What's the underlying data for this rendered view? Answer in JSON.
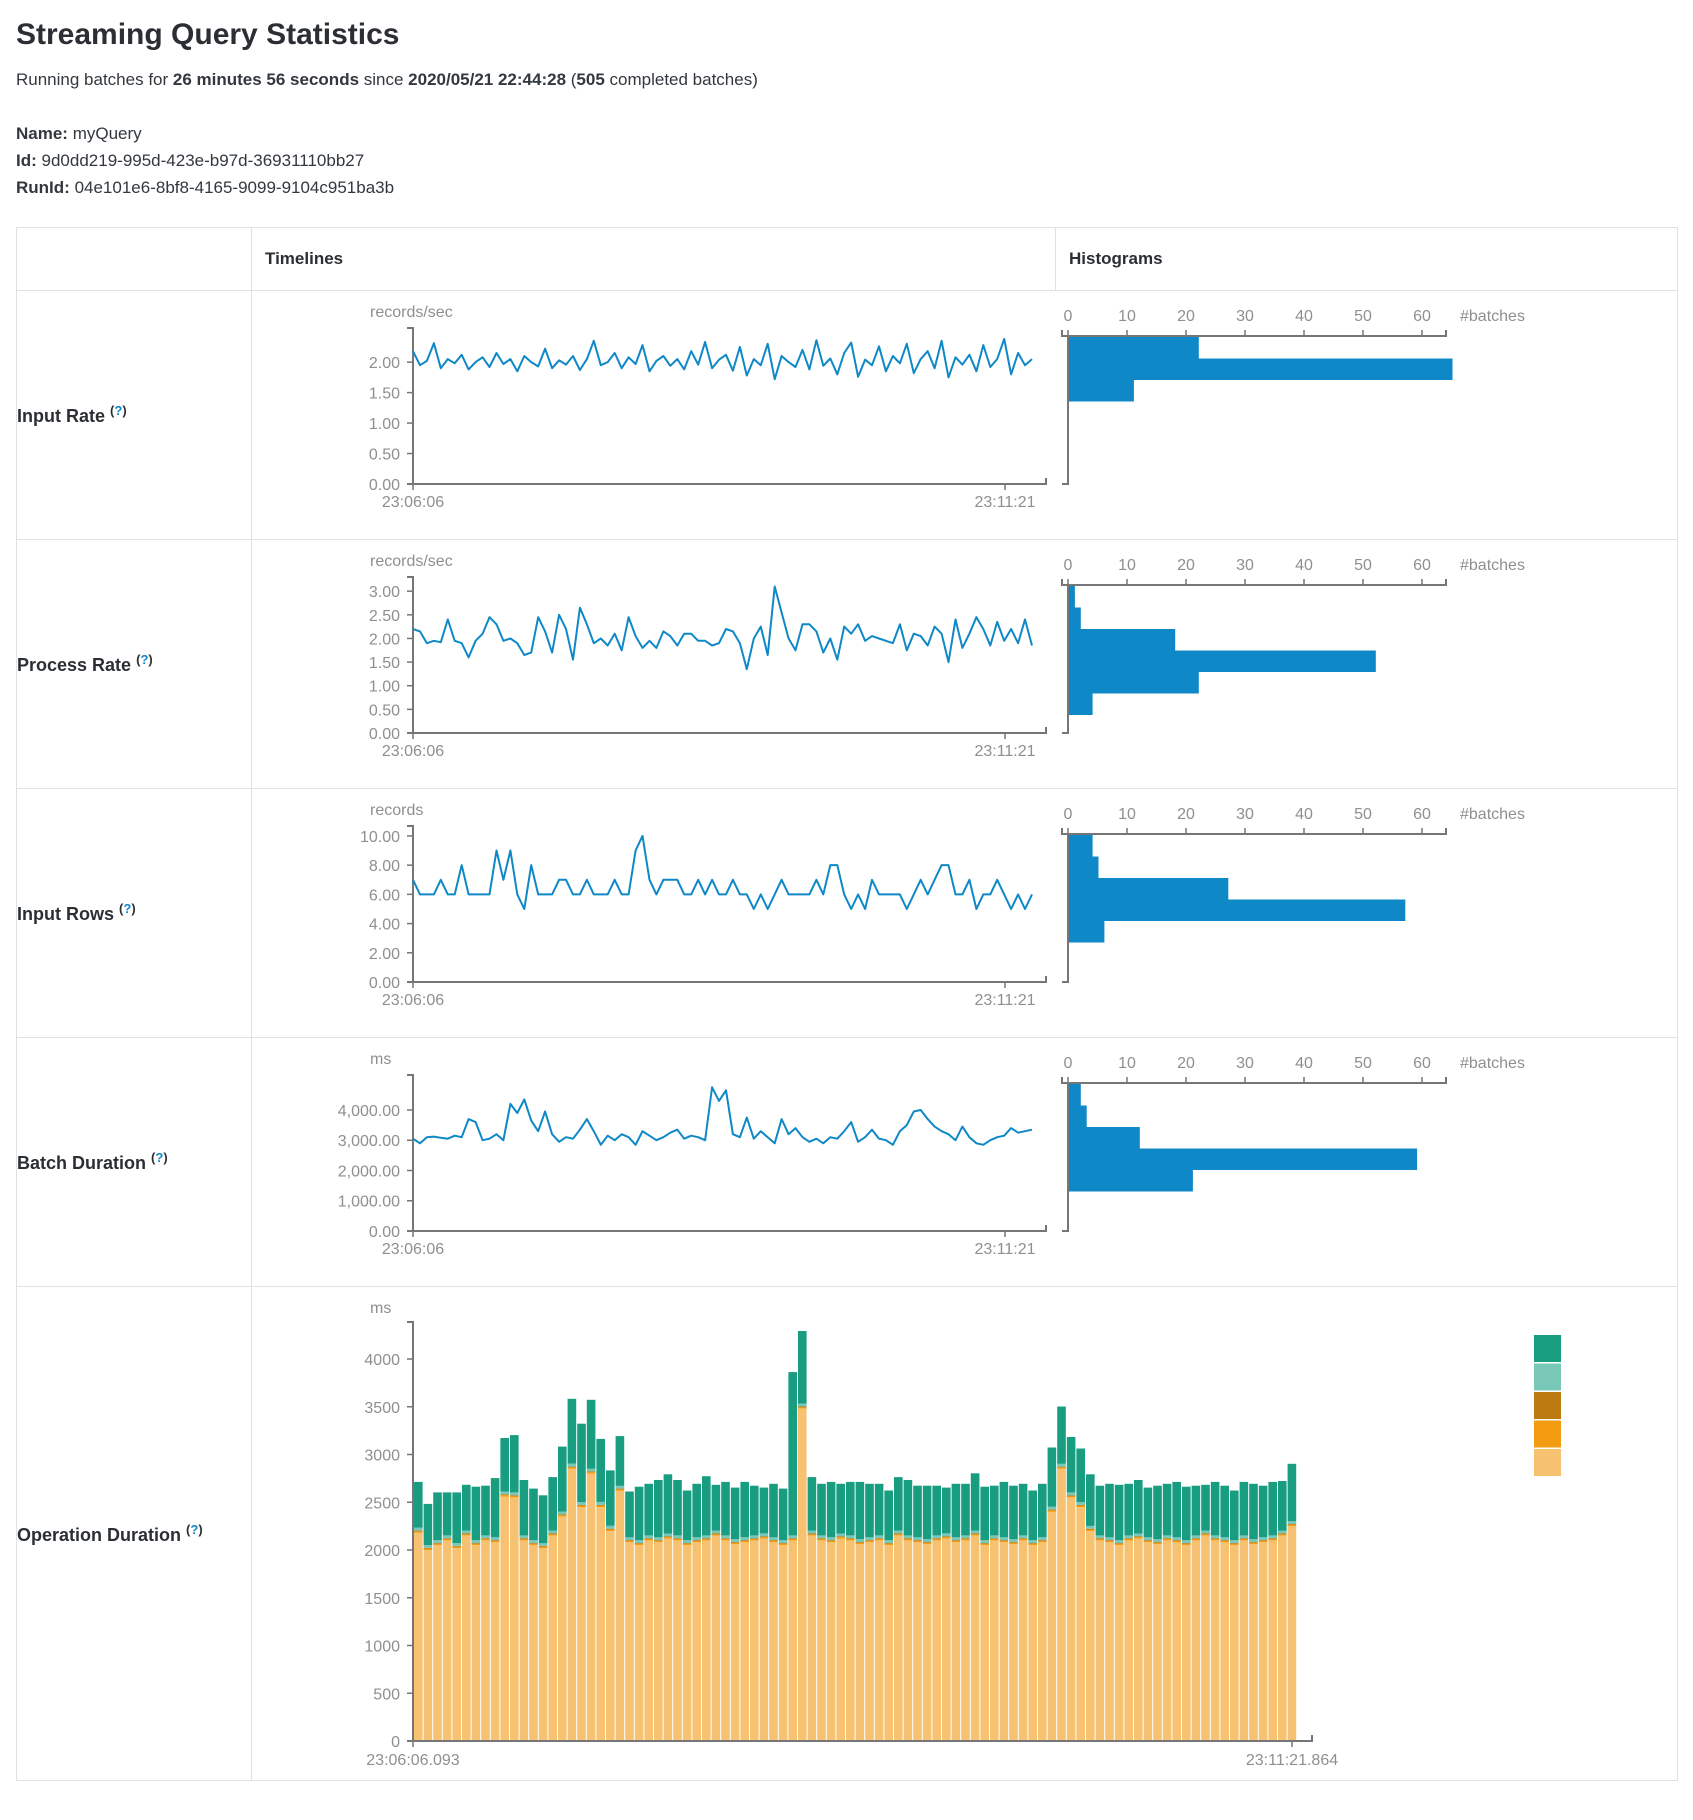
{
  "page": {
    "title": "Streaming Query Statistics"
  },
  "subtitle": {
    "prefix": "Running batches for ",
    "duration": "26 minutes 56 seconds",
    "mid": " since ",
    "since": "2020/05/21 22:44:28",
    "open_paren": " (",
    "batch_count": "505",
    "suffix": " completed batches)"
  },
  "meta": {
    "name_label": "Name:",
    "name_value": "myQuery",
    "id_label": "Id:",
    "id_value": "9d0dd219-995d-423e-b97d-36931110bb27",
    "runid_label": "RunId:",
    "runid_value": "04e101e6-8bf8-4165-9099-9104c951ba3b"
  },
  "table": {
    "headers": {
      "timelines": "Timelines",
      "histograms": "Histograms"
    },
    "help": {
      "open": "(",
      "q": "?",
      "close": ")"
    },
    "rows": [
      {
        "label": "Input Rate"
      },
      {
        "label": "Process Rate"
      },
      {
        "label": "Input Rows"
      },
      {
        "label": "Batch Duration"
      },
      {
        "label": "Operation Duration"
      }
    ]
  },
  "colors": {
    "line": "#0e88c6",
    "bar": "#0e88c6",
    "axis": "#767676",
    "stack": {
      "green": "#189d80",
      "light-green": "#79c8b7",
      "brown": "#bd7a10",
      "orange": "#f39c11",
      "tan": "#f6c271"
    }
  },
  "chart_data": {
    "rows": [
      {
        "key": "input-rate",
        "type": "line",
        "unit": "records/sec",
        "x_start": "23:06:06",
        "x_end": "23:11:21",
        "ymax": 2.56,
        "yticks": [
          {
            "v": 2,
            "label": "2.00"
          },
          {
            "v": 1.5,
            "label": "1.50"
          },
          {
            "v": 1,
            "label": "1.00"
          },
          {
            "v": 0.5,
            "label": "0.50"
          },
          {
            "v": 0,
            "label": "0.00"
          }
        ],
        "values": [
          2.18,
          1.95,
          2.02,
          2.31,
          1.9,
          2.05,
          1.98,
          2.12,
          1.88,
          2.0,
          2.08,
          1.92,
          2.15,
          1.97,
          2.05,
          1.85,
          2.1,
          2.0,
          1.93,
          2.22,
          1.9,
          2.03,
          1.96,
          2.1,
          1.87,
          2.05,
          2.35,
          1.95,
          2.0,
          2.15,
          1.9,
          2.08,
          1.97,
          2.28,
          1.85,
          2.02,
          2.1,
          1.94,
          2.05,
          1.88,
          2.18,
          1.96,
          2.33,
          1.9,
          2.04,
          2.12,
          1.86,
          2.25,
          1.78,
          2.05,
          1.95,
          2.3,
          1.72,
          2.1,
          2.0,
          1.92,
          2.2,
          1.88,
          2.36,
          1.94,
          2.06,
          1.8,
          2.15,
          2.32,
          1.76,
          2.04,
          1.95,
          2.26,
          1.85,
          2.1,
          1.98,
          2.3,
          1.82,
          2.05,
          2.18,
          1.9,
          2.35,
          1.75,
          2.08,
          1.96,
          2.12,
          1.85,
          2.28,
          1.92,
          2.05,
          2.38,
          1.8,
          2.15,
          1.95,
          2.05
        ],
        "histogram": {
          "type": "bar",
          "count_label": "#batches",
          "ticks": [
            0,
            10,
            20,
            30,
            40,
            50,
            60
          ],
          "values": [
            22,
            65,
            11
          ]
        }
      },
      {
        "key": "process-rate",
        "type": "line",
        "unit": "records/sec",
        "x_start": "23:06:06",
        "x_end": "23:11:21",
        "ymax": 3.3,
        "yticks": [
          {
            "v": 3,
            "label": "3.00"
          },
          {
            "v": 2.5,
            "label": "2.50"
          },
          {
            "v": 2,
            "label": "2.00"
          },
          {
            "v": 1.5,
            "label": "1.50"
          },
          {
            "v": 1,
            "label": "1.00"
          },
          {
            "v": 0.5,
            "label": "0.50"
          },
          {
            "v": 0,
            "label": "0.00"
          }
        ],
        "values": [
          2.2,
          2.15,
          1.9,
          1.95,
          1.92,
          2.4,
          1.95,
          1.9,
          1.6,
          1.95,
          2.1,
          2.45,
          2.3,
          1.95,
          2.0,
          1.9,
          1.65,
          1.7,
          2.45,
          2.15,
          1.7,
          2.5,
          2.2,
          1.55,
          2.65,
          2.3,
          1.9,
          2.0,
          1.85,
          2.1,
          1.75,
          2.45,
          2.05,
          1.8,
          1.95,
          1.8,
          2.15,
          2.05,
          1.85,
          2.1,
          2.1,
          1.95,
          1.95,
          1.85,
          1.9,
          2.2,
          2.15,
          1.9,
          1.35,
          2.0,
          2.25,
          1.65,
          3.1,
          2.55,
          2.0,
          1.75,
          2.3,
          2.3,
          2.15,
          1.7,
          2.0,
          1.55,
          2.25,
          2.1,
          2.3,
          1.95,
          2.05,
          2.0,
          1.95,
          1.9,
          2.3,
          1.75,
          2.1,
          2.05,
          1.85,
          2.25,
          2.1,
          1.5,
          2.4,
          1.8,
          2.1,
          2.45,
          2.2,
          1.85,
          2.35,
          1.95,
          2.2,
          1.9,
          2.4,
          1.85
        ],
        "histogram": {
          "type": "bar",
          "count_label": "#batches",
          "ticks": [
            0,
            10,
            20,
            30,
            40,
            50,
            60
          ],
          "values": [
            1,
            2,
            18,
            52,
            22,
            4
          ]
        }
      },
      {
        "key": "input-rows",
        "type": "line",
        "unit": "records",
        "x_start": "23:06:06",
        "x_end": "23:11:21",
        "ymax": 10.68,
        "yticks": [
          {
            "v": 10,
            "label": "10.00"
          },
          {
            "v": 8,
            "label": "8.00"
          },
          {
            "v": 6,
            "label": "6.00"
          },
          {
            "v": 4,
            "label": "4.00"
          },
          {
            "v": 2,
            "label": "2.00"
          },
          {
            "v": 0,
            "label": "0.00"
          }
        ],
        "values": [
          7,
          6,
          6,
          6,
          7,
          6,
          6,
          8,
          6,
          6,
          6,
          6,
          9,
          7,
          9,
          6,
          5,
          8,
          6,
          6,
          6,
          7,
          7,
          6,
          6,
          7,
          6,
          6,
          6,
          7,
          6,
          6,
          9,
          10,
          7,
          6,
          7,
          7,
          7,
          6,
          6,
          7,
          6,
          7,
          6,
          6,
          7,
          6,
          6,
          5,
          6,
          5,
          6,
          7,
          6,
          6,
          6,
          6,
          7,
          6,
          8,
          8,
          6,
          5,
          6,
          5,
          7,
          6,
          6,
          6,
          6,
          5,
          6,
          7,
          6,
          7,
          8,
          8,
          6,
          6,
          7,
          5,
          6,
          6,
          7,
          6,
          5,
          6,
          5,
          6
        ],
        "histogram": {
          "type": "bar",
          "count_label": "#batches",
          "ticks": [
            0,
            10,
            20,
            30,
            40,
            50,
            60
          ],
          "values": [
            4,
            5,
            27,
            57,
            6
          ]
        }
      },
      {
        "key": "batch-duration",
        "type": "line",
        "unit": "ms",
        "x_start": "23:06:06",
        "x_end": "23:11:21",
        "ymax": 5157,
        "yticks": [
          {
            "v": 4000,
            "label": "4,000.00"
          },
          {
            "v": 3000,
            "label": "3,000.00"
          },
          {
            "v": 2000,
            "label": "2,000.00"
          },
          {
            "v": 1000,
            "label": "1,000.00"
          },
          {
            "v": 0,
            "label": "0.00"
          }
        ],
        "values": [
          3050,
          2900,
          3100,
          3120,
          3080,
          3050,
          3150,
          3100,
          3700,
          3600,
          3000,
          3050,
          3200,
          3000,
          4200,
          3900,
          4350,
          3650,
          3300,
          3950,
          3200,
          2950,
          3100,
          3050,
          3350,
          3700,
          3300,
          2850,
          3150,
          3000,
          3200,
          3100,
          2850,
          3300,
          3150,
          3000,
          3100,
          3250,
          3350,
          3050,
          3150,
          3100,
          3000,
          4750,
          4300,
          4650,
          3200,
          3100,
          3750,
          3050,
          3300,
          3100,
          2900,
          3700,
          3200,
          3400,
          3100,
          2950,
          3050,
          2900,
          3100,
          3050,
          3300,
          3600,
          2950,
          3100,
          3350,
          3050,
          3000,
          2850,
          3300,
          3500,
          3950,
          4000,
          3700,
          3450,
          3300,
          3200,
          3000,
          3450,
          3100,
          2900,
          2850,
          3000,
          3100,
          3150,
          3400,
          3250,
          3300,
          3350
        ],
        "histogram": {
          "type": "bar",
          "count_label": "#batches",
          "ticks": [
            0,
            10,
            20,
            30,
            40,
            50,
            60
          ],
          "values": [
            2,
            3,
            12,
            59,
            21
          ]
        }
      }
    ],
    "operation_duration": {
      "type": "bar",
      "subtype": "stacked",
      "unit": "ms",
      "x_start": "23:06:06.093",
      "x_end": "23:11:21.864",
      "yticks": [
        {
          "v": 4000,
          "label": "4000"
        },
        {
          "v": 3500,
          "label": "3500"
        },
        {
          "v": 3000,
          "label": "3000"
        },
        {
          "v": 2500,
          "label": "2500"
        },
        {
          "v": 2000,
          "label": "2000"
        },
        {
          "v": 1500,
          "label": "1500"
        },
        {
          "v": 1000,
          "label": "1000"
        },
        {
          "v": 500,
          "label": "500"
        },
        {
          "v": 0,
          "label": "0"
        }
      ],
      "legend_order": [
        "green",
        "light-green",
        "brown",
        "orange",
        "tan"
      ],
      "series": [
        {
          "name": "tan",
          "values": [
            2180,
            2000,
            2050,
            2100,
            2020,
            2150,
            2050,
            2100,
            2080,
            2560,
            2550,
            2100,
            2050,
            2020,
            2150,
            2350,
            2850,
            2450,
            2800,
            2450,
            2200,
            2620,
            2080,
            2050,
            2100,
            2080,
            2120,
            2100,
            2050,
            2080,
            2100,
            2150,
            2100,
            2060,
            2080,
            2100,
            2120,
            2080,
            2050,
            2100,
            3480,
            2150,
            2100,
            2080,
            2120,
            2100,
            2060,
            2080,
            2100,
            2050,
            2150,
            2100,
            2080,
            2060,
            2100,
            2120,
            2080,
            2100,
            2150,
            2050,
            2100,
            2080,
            2060,
            2100,
            2050,
            2080,
            2400,
            2850,
            2550,
            2450,
            2200,
            2100,
            2080,
            2050,
            2100,
            2120,
            2080,
            2060,
            2100,
            2080,
            2050,
            2100,
            2150,
            2100,
            2080,
            2050,
            2100,
            2060,
            2080,
            2100,
            2150,
            2250
          ]
        },
        {
          "name": "orange",
          "value_all": 15
        },
        {
          "name": "brown",
          "value_all": 8
        },
        {
          "name": "light-green",
          "value_all": 30
        },
        {
          "name": "green",
          "values": [
            480,
            430,
            500,
            450,
            530,
            480,
            560,
            520,
            620,
            560,
            600,
            580,
            540,
            500,
            560,
            680,
            680,
            820,
            720,
            660,
            580,
            520,
            480,
            560,
            540,
            600,
            620,
            580,
            520,
            560,
            620,
            480,
            560,
            540,
            580,
            520,
            480,
            560,
            540,
            1710,
            760,
            560,
            540,
            580,
            520,
            560,
            600,
            560,
            540,
            520,
            560,
            580,
            540,
            560,
            520,
            480,
            560,
            540,
            600,
            560,
            520,
            580,
            560,
            540,
            520,
            560,
            620,
            600,
            580,
            560,
            540,
            520,
            560,
            580,
            540,
            560,
            520,
            560,
            540,
            580,
            560,
            520,
            480,
            560,
            540,
            520,
            560,
            580,
            540,
            560,
            520,
            600
          ]
        }
      ]
    }
  }
}
